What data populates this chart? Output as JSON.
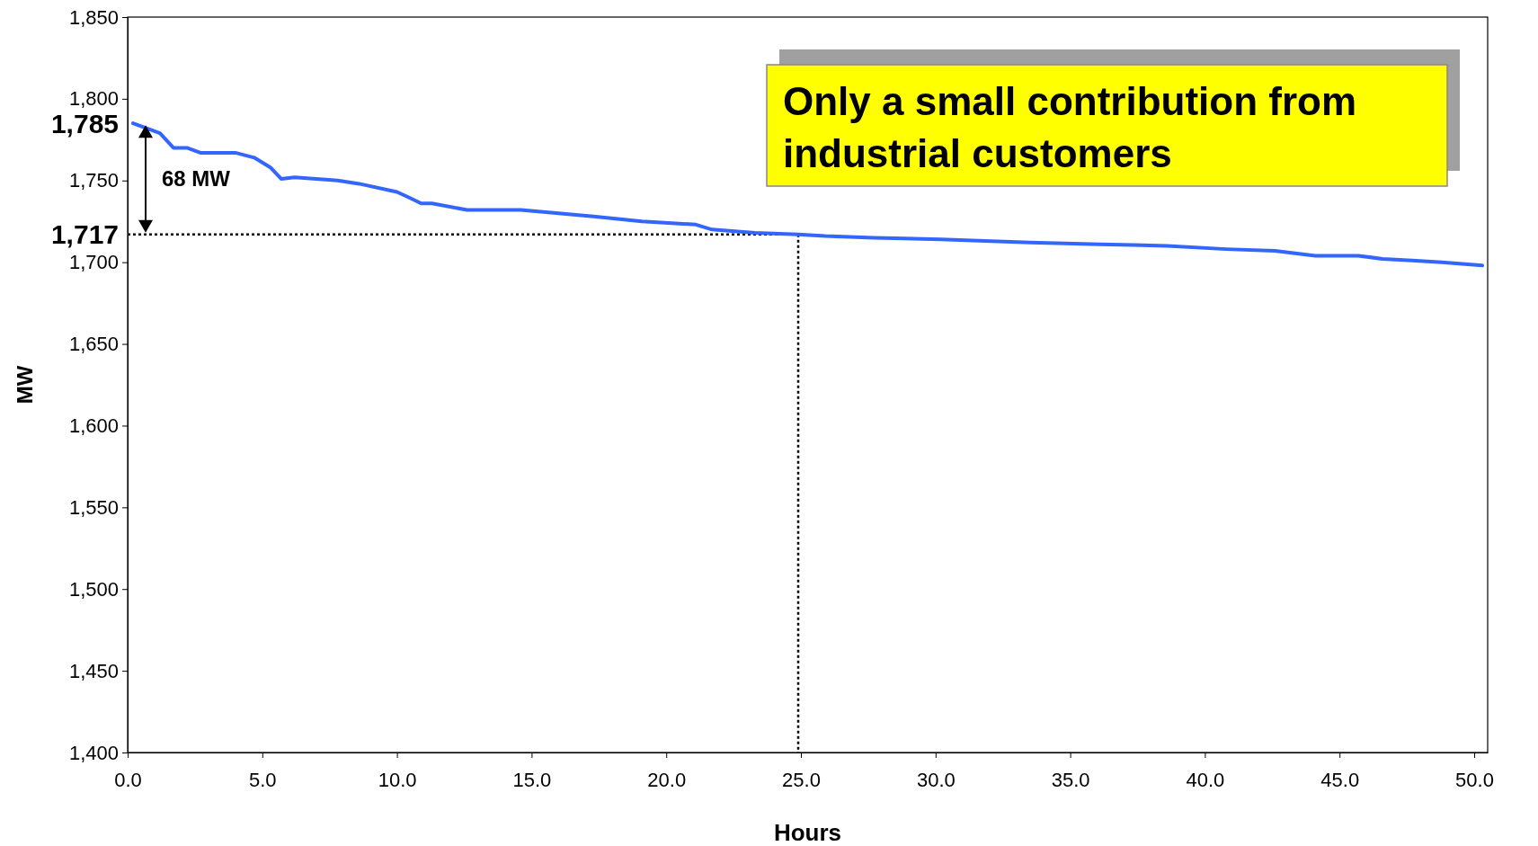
{
  "chart_data": {
    "type": "line",
    "xlabel": "Hours",
    "ylabel": "MW",
    "xlim": [
      0,
      50.5
    ],
    "xticks": [
      {
        "value": 0,
        "label": "0.0"
      },
      {
        "value": 5,
        "label": "5.0"
      },
      {
        "value": 10,
        "label": "10.0"
      },
      {
        "value": 15,
        "label": "15.0"
      },
      {
        "value": 20,
        "label": "20.0"
      },
      {
        "value": 25,
        "label": "25.0"
      },
      {
        "value": 30,
        "label": "30.0"
      },
      {
        "value": 35,
        "label": "35.0"
      },
      {
        "value": 40,
        "label": "40.0"
      },
      {
        "value": 45,
        "label": "45.0"
      },
      {
        "value": 50,
        "label": "50.0"
      }
    ],
    "ylim": [
      1400,
      1850
    ],
    "yticks": [
      {
        "value": 1400,
        "label": "1,400"
      },
      {
        "value": 1450,
        "label": "1,450"
      },
      {
        "value": 1500,
        "label": "1,500"
      },
      {
        "value": 1550,
        "label": "1,550"
      },
      {
        "value": 1600,
        "label": "1,600"
      },
      {
        "value": 1650,
        "label": "1,650"
      },
      {
        "value": 1700,
        "label": "1,700"
      },
      {
        "value": 1750,
        "label": "1,750"
      },
      {
        "value": 1800,
        "label": "1,800"
      },
      {
        "value": 1850,
        "label": "1,850"
      }
    ],
    "grid": false,
    "marker": "none",
    "line_style": "solid",
    "series": [
      {
        "color": "#3366ff",
        "x": [
          0.2,
          1.2,
          1.7,
          2.2,
          2.7,
          4.0,
          4.7,
          5.3,
          5.7,
          6.2,
          7.8,
          8.6,
          10.0,
          10.4,
          10.9,
          11.3,
          12.6,
          14.6,
          16.0,
          17.3,
          19.1,
          21.1,
          21.7,
          23.3,
          24.9,
          25.9,
          27.7,
          30.2,
          33.5,
          36.1,
          38.6,
          40.8,
          42.6,
          44.1,
          45.7,
          46.6,
          47.7,
          48.8,
          50.3
        ],
        "values": [
          1785,
          1779,
          1770,
          1770,
          1767,
          1767,
          1764,
          1758,
          1751,
          1752,
          1750,
          1748,
          1743,
          1740,
          1736,
          1736,
          1732,
          1732,
          1730,
          1728,
          1725,
          1723,
          1720,
          1718,
          1717,
          1716,
          1715,
          1714,
          1712,
          1711,
          1710,
          1708,
          1707,
          1704,
          1704,
          1702,
          1701,
          1700,
          1698
        ]
      }
    ],
    "ref_lines": [
      {
        "axis": "y",
        "value": 1717,
        "label": "1,717",
        "line_style": "dotted",
        "color": "#000000"
      },
      {
        "axis": "x",
        "value": 24.9,
        "line_style": "dotted",
        "color": "#000000"
      }
    ],
    "annotations": [
      "1,785",
      "68 MW",
      "Only a small contribution from industrial customers"
    ]
  }
}
